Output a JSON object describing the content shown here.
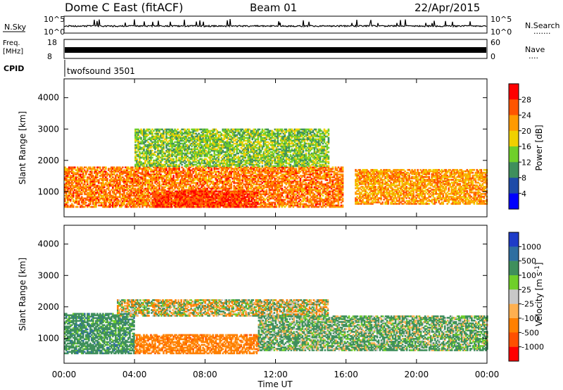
{
  "header": {
    "station": "Dome C East (fitACF)",
    "beam": "Beam 01",
    "date": "22/Apr/2015"
  },
  "sky_panel": {
    "left_label": "N.Sky",
    "left_top_tick": "10^5",
    "left_bottom_tick": "10^0",
    "right_label": "N.Search",
    "right_top_tick": "10^5",
    "right_bottom_tick": "10^0",
    "right_dots": "......."
  },
  "freq_panel": {
    "left_label_line1": "Freq.",
    "left_label_line2": "[MHz]",
    "left_top_tick": "18",
    "left_bottom_tick": "8",
    "right_label": "Nave",
    "right_top_tick": "60",
    "right_bottom_tick": "0",
    "right_dots": "...."
  },
  "cpid": {
    "label": "CPID",
    "value": "twofsound 3501"
  },
  "chart_data": [
    {
      "type": "heatmap",
      "title": "Power",
      "ylabel": "Slant Range [km]",
      "xlabel": "",
      "xlim": [
        0,
        24
      ],
      "ylim": [
        200,
        4600
      ],
      "x_ticks": [
        "00:00",
        "04:00",
        "08:00",
        "12:00",
        "16:00",
        "20:00",
        "00:00"
      ],
      "y_ticks": [
        1000,
        2000,
        3000,
        4000
      ],
      "colorbar": {
        "label": "Power [dB]",
        "ticks": [
          "4",
          "8",
          "12",
          "16",
          "20",
          "24",
          "28"
        ],
        "colors": [
          "#0000ff",
          "#1e4ba8",
          "#3f8f5c",
          "#6fcf2a",
          "#f0d000",
          "#ff9a00",
          "#ff5500",
          "#ff0000"
        ]
      },
      "description_bands": [
        {
          "x_start": 0,
          "x_end": 15.8,
          "range_low": 500,
          "range_high": 1800,
          "level_db": 24
        },
        {
          "x_start": 5,
          "x_end": 11,
          "range_low": 500,
          "range_high": 1000,
          "level_db": 28
        },
        {
          "x_start": 16.5,
          "x_end": 24,
          "range_low": 600,
          "range_high": 1700,
          "level_db": 22
        },
        {
          "x_start": 4,
          "x_end": 15,
          "range_low": 1800,
          "range_high": 3000,
          "level_db": 14
        }
      ]
    },
    {
      "type": "heatmap",
      "title": "Velocity",
      "ylabel": "Slant Range [km]",
      "xlabel": "Time UT",
      "xlim": [
        0,
        24
      ],
      "ylim": [
        200,
        4600
      ],
      "x_ticks": [
        "00:00",
        "04:00",
        "08:00",
        "12:00",
        "16:00",
        "20:00",
        "00:00"
      ],
      "y_ticks": [
        1000,
        2000,
        3000,
        4000
      ],
      "colorbar": {
        "label": "Velocity [m s-1]",
        "label_main": "Velocity [m s",
        "label_sup": "-1",
        "label_end": "]",
        "ticks": [
          "1000",
          "500",
          "100",
          "25",
          "-25",
          "-100",
          "-500",
          "-1000"
        ],
        "colors": [
          "#1e3cc8",
          "#2e6ea0",
          "#3f8f5c",
          "#6fcf2a",
          "#c8c8c8",
          "#ffb050",
          "#ff8000",
          "#ff5000",
          "#ff0000"
        ]
      },
      "description_bands": [
        {
          "x_start": 0,
          "x_end": 4,
          "range_low": 500,
          "range_high": 1800,
          "velocity": 300
        },
        {
          "x_start": 4,
          "x_end": 11,
          "range_low": 500,
          "range_high": 1100,
          "velocity": -300
        },
        {
          "x_start": 3,
          "x_end": 15,
          "range_low": 1700,
          "range_high": 2200,
          "velocity": 0
        },
        {
          "x_start": 11,
          "x_end": 24,
          "range_low": 600,
          "range_high": 1700,
          "velocity": 150
        }
      ]
    }
  ]
}
